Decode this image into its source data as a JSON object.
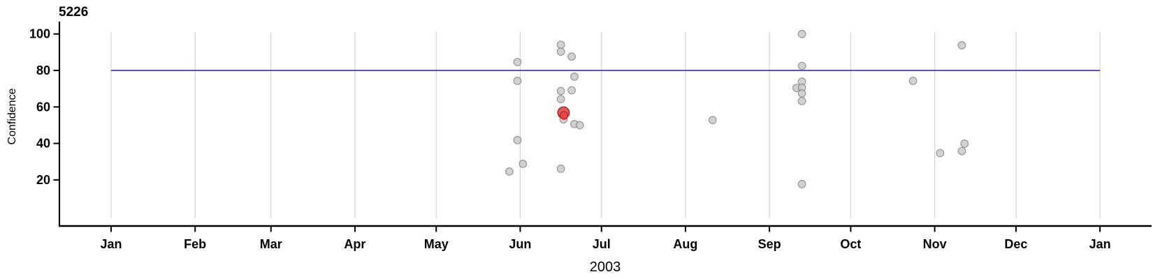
{
  "title": "5226",
  "y_axis": {
    "label": "Confidence",
    "ticks": [
      20,
      40,
      60,
      80,
      100
    ]
  },
  "x_axis": {
    "year_label": "2003",
    "month_labels": [
      "Jan",
      "Feb",
      "Mar",
      "Apr",
      "May",
      "Jun",
      "Jul",
      "Aug",
      "Sep",
      "Oct",
      "Nov",
      "Dec",
      "Jan"
    ]
  },
  "colors": {
    "axis": "#000000",
    "gridline": "#d8d8d8",
    "reference_line": "#1a1ac8",
    "point_fill": "#c6c6c6",
    "point_stroke": "#8f8f8f",
    "highlight_fill": "#e84545",
    "highlight_stroke": "#b02828"
  },
  "chart_data": {
    "type": "scatter",
    "title": "5226",
    "xlabel": "2003",
    "ylabel": "Confidence",
    "x_range": [
      "2003-01-01",
      "2004-01-01"
    ],
    "ylim": [
      -5,
      106
    ],
    "y_ticks": [
      20,
      40,
      60,
      80,
      100
    ],
    "grid": "vertical-monthly",
    "reference_line_y": 80,
    "points": [
      {
        "date": "2003-05-28",
        "confidence": 24.6
      },
      {
        "date": "2003-05-31",
        "confidence": 84.6
      },
      {
        "date": "2003-05-31",
        "confidence": 74.3
      },
      {
        "date": "2003-05-31",
        "confidence": 41.8
      },
      {
        "date": "2003-06-02",
        "confidence": 28.8
      },
      {
        "date": "2003-06-16",
        "confidence": 94.1
      },
      {
        "date": "2003-06-16",
        "confidence": 90.3
      },
      {
        "date": "2003-06-16",
        "confidence": 68.7
      },
      {
        "date": "2003-06-16",
        "confidence": 64.3
      },
      {
        "date": "2003-06-16",
        "confidence": 26.1
      },
      {
        "date": "2003-06-17",
        "confidence": 53.2
      },
      {
        "date": "2003-06-20",
        "confidence": 87.6
      },
      {
        "date": "2003-06-20",
        "confidence": 69.1
      },
      {
        "date": "2003-06-21",
        "confidence": 76.6
      },
      {
        "date": "2003-06-21",
        "confidence": 50.6
      },
      {
        "date": "2003-06-23",
        "confidence": 50.0
      },
      {
        "date": "2003-08-11",
        "confidence": 52.8
      },
      {
        "date": "2003-09-11",
        "confidence": 70.4
      },
      {
        "date": "2003-09-13",
        "confidence": 100.0
      },
      {
        "date": "2003-09-13",
        "confidence": 82.5
      },
      {
        "date": "2003-09-13",
        "confidence": 73.9
      },
      {
        "date": "2003-09-13",
        "confidence": 70.6
      },
      {
        "date": "2003-09-13",
        "confidence": 67.4
      },
      {
        "date": "2003-09-13",
        "confidence": 63.2
      },
      {
        "date": "2003-09-13",
        "confidence": 17.7
      },
      {
        "date": "2003-10-24",
        "confidence": 74.3
      },
      {
        "date": "2003-11-03",
        "confidence": 34.7
      },
      {
        "date": "2003-11-11",
        "confidence": 93.8
      },
      {
        "date": "2003-11-11",
        "confidence": 35.8
      },
      {
        "date": "2003-11-12",
        "confidence": 39.9
      }
    ],
    "highlight_point": {
      "date": "2003-06-17",
      "confidence": 56.5
    }
  }
}
